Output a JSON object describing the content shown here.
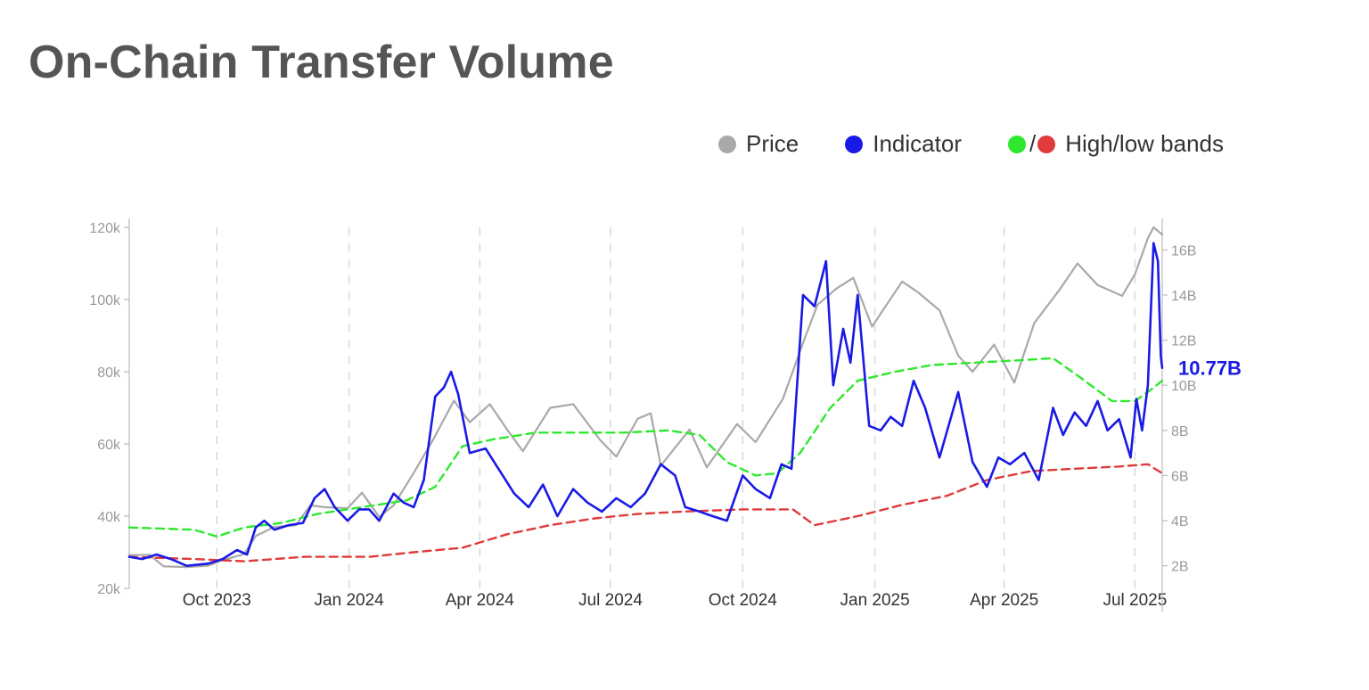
{
  "title": "On-Chain Transfer Volume",
  "legend": {
    "price_label": "Price",
    "indicator_label": "Indicator",
    "slash": "/",
    "bands_label": "High/low bands"
  },
  "colors": {
    "price": "#a9a9a9",
    "indicator": "#1a1ae6",
    "high_band": "#2ee82e",
    "low_band": "#e03a3a",
    "grid": "#d6d6d6",
    "axis": "#bbbbbb"
  },
  "chart_data": {
    "type": "line",
    "title": "On-Chain Transfer Volume",
    "x_range": [
      "2023-08-01",
      "2025-07-20"
    ],
    "x_ticks": [
      {
        "date": "2023-10-01",
        "label": "Oct 2023"
      },
      {
        "date": "2024-01-01",
        "label": "Jan 2024"
      },
      {
        "date": "2024-04-01",
        "label": "Apr 2024"
      },
      {
        "date": "2024-07-01",
        "label": "Jul 2024"
      },
      {
        "date": "2024-10-01",
        "label": "Oct 2024"
      },
      {
        "date": "2025-01-01",
        "label": "Jan 2025"
      },
      {
        "date": "2025-04-01",
        "label": "Apr 2025"
      },
      {
        "date": "2025-07-01",
        "label": "Jul 2025"
      }
    ],
    "grid": "vertical dashed",
    "legend_position": "top-right",
    "left_axis": {
      "min": 20000,
      "max": 120000,
      "ticks": [
        20000,
        40000,
        60000,
        80000,
        100000,
        120000
      ],
      "tick_labels": [
        "20k",
        "40k",
        "60k",
        "80k",
        "100k",
        "120k"
      ]
    },
    "right_axis": {
      "min": 1,
      "max": 17,
      "ticks": [
        2,
        4,
        6,
        8,
        10,
        12,
        14,
        16
      ],
      "tick_labels": [
        "2B",
        "4B",
        "6B",
        "8B",
        "10B",
        "12B",
        "14B",
        "16B"
      ]
    },
    "last_value_label": "10.77B",
    "series": [
      {
        "name": "Price",
        "axis": "left",
        "style": "solid",
        "points": [
          [
            "2023-08-01",
            29200
          ],
          [
            "2023-08-15",
            29300
          ],
          [
            "2023-08-25",
            26100
          ],
          [
            "2023-09-10",
            25900
          ],
          [
            "2023-09-25",
            26300
          ],
          [
            "2023-10-05",
            27800
          ],
          [
            "2023-10-20",
            29500
          ],
          [
            "2023-10-28",
            34500
          ],
          [
            "2023-11-10",
            37000
          ],
          [
            "2023-11-25",
            37500
          ],
          [
            "2023-12-05",
            43000
          ],
          [
            "2023-12-15",
            42500
          ],
          [
            "2023-12-31",
            42200
          ],
          [
            "2024-01-10",
            46500
          ],
          [
            "2024-01-22",
            39800
          ],
          [
            "2024-02-01",
            43000
          ],
          [
            "2024-02-15",
            52000
          ],
          [
            "2024-02-29",
            61500
          ],
          [
            "2024-03-14",
            72000
          ],
          [
            "2024-03-25",
            66000
          ],
          [
            "2024-04-08",
            71000
          ],
          [
            "2024-04-20",
            64000
          ],
          [
            "2024-05-01",
            58000
          ],
          [
            "2024-05-20",
            70000
          ],
          [
            "2024-06-05",
            71000
          ],
          [
            "2024-06-24",
            61000
          ],
          [
            "2024-07-05",
            56500
          ],
          [
            "2024-07-20",
            67000
          ],
          [
            "2024-07-29",
            68500
          ],
          [
            "2024-08-05",
            54000
          ],
          [
            "2024-08-25",
            64000
          ],
          [
            "2024-09-06",
            53500
          ],
          [
            "2024-09-27",
            65500
          ],
          [
            "2024-10-10",
            60500
          ],
          [
            "2024-10-29",
            72500
          ],
          [
            "2024-11-12",
            88000
          ],
          [
            "2024-11-22",
            98500
          ],
          [
            "2024-12-05",
            103000
          ],
          [
            "2024-12-17",
            106000
          ],
          [
            "2024-12-30",
            92500
          ],
          [
            "2025-01-20",
            105000
          ],
          [
            "2025-01-31",
            102000
          ],
          [
            "2025-02-15",
            97000
          ],
          [
            "2025-02-28",
            84500
          ],
          [
            "2025-03-10",
            80000
          ],
          [
            "2025-03-25",
            87500
          ],
          [
            "2025-04-08",
            77000
          ],
          [
            "2025-04-22",
            93500
          ],
          [
            "2025-05-10",
            103000
          ],
          [
            "2025-05-22",
            110000
          ],
          [
            "2025-06-05",
            104000
          ],
          [
            "2025-06-22",
            101000
          ],
          [
            "2025-07-01",
            107000
          ],
          [
            "2025-07-10",
            117000
          ],
          [
            "2025-07-14",
            120000
          ],
          [
            "2025-07-20",
            118000
          ]
        ]
      },
      {
        "name": "Indicator",
        "axis": "right",
        "style": "solid",
        "points": [
          [
            "2023-08-01",
            2.4
          ],
          [
            "2023-08-10",
            2.3
          ],
          [
            "2023-08-20",
            2.5
          ],
          [
            "2023-08-30",
            2.3
          ],
          [
            "2023-09-10",
            2.0
          ],
          [
            "2023-09-25",
            2.1
          ],
          [
            "2023-10-05",
            2.3
          ],
          [
            "2023-10-15",
            2.7
          ],
          [
            "2023-10-22",
            2.5
          ],
          [
            "2023-10-28",
            3.7
          ],
          [
            "2023-11-03",
            4.0
          ],
          [
            "2023-11-10",
            3.6
          ],
          [
            "2023-11-20",
            3.8
          ],
          [
            "2023-11-30",
            3.9
          ],
          [
            "2023-12-08",
            5.0
          ],
          [
            "2023-12-15",
            5.4
          ],
          [
            "2023-12-22",
            4.6
          ],
          [
            "2023-12-31",
            4.0
          ],
          [
            "2024-01-08",
            4.5
          ],
          [
            "2024-01-15",
            4.5
          ],
          [
            "2024-01-22",
            4.0
          ],
          [
            "2024-02-01",
            5.2
          ],
          [
            "2024-02-08",
            4.8
          ],
          [
            "2024-02-15",
            4.6
          ],
          [
            "2024-02-22",
            5.8
          ],
          [
            "2024-03-01",
            9.5
          ],
          [
            "2024-03-07",
            9.9
          ],
          [
            "2024-03-12",
            10.6
          ],
          [
            "2024-03-17",
            9.6
          ],
          [
            "2024-03-25",
            7.0
          ],
          [
            "2024-04-05",
            7.2
          ],
          [
            "2024-04-15",
            6.2
          ],
          [
            "2024-04-25",
            5.2
          ],
          [
            "2024-05-05",
            4.6
          ],
          [
            "2024-05-15",
            5.6
          ],
          [
            "2024-05-25",
            4.2
          ],
          [
            "2024-06-05",
            5.4
          ],
          [
            "2024-06-15",
            4.8
          ],
          [
            "2024-06-25",
            4.4
          ],
          [
            "2024-07-05",
            5.0
          ],
          [
            "2024-07-15",
            4.6
          ],
          [
            "2024-07-25",
            5.2
          ],
          [
            "2024-08-05",
            6.5
          ],
          [
            "2024-08-15",
            6.0
          ],
          [
            "2024-08-22",
            4.6
          ],
          [
            "2024-09-01",
            4.4
          ],
          [
            "2024-09-10",
            4.2
          ],
          [
            "2024-09-20",
            4.0
          ],
          [
            "2024-10-01",
            6.0
          ],
          [
            "2024-10-10",
            5.4
          ],
          [
            "2024-10-20",
            5.0
          ],
          [
            "2024-10-28",
            6.5
          ],
          [
            "2024-11-04",
            6.3
          ],
          [
            "2024-11-12",
            14.0
          ],
          [
            "2024-11-20",
            13.5
          ],
          [
            "2024-11-28",
            15.5
          ],
          [
            "2024-12-03",
            10.0
          ],
          [
            "2024-12-10",
            12.5
          ],
          [
            "2024-12-15",
            11.0
          ],
          [
            "2024-12-20",
            14.0
          ],
          [
            "2024-12-28",
            8.2
          ],
          [
            "2025-01-05",
            8.0
          ],
          [
            "2025-01-12",
            8.6
          ],
          [
            "2025-01-20",
            8.2
          ],
          [
            "2025-01-28",
            10.2
          ],
          [
            "2025-02-05",
            9.0
          ],
          [
            "2025-02-15",
            6.8
          ],
          [
            "2025-02-28",
            9.7
          ],
          [
            "2025-03-10",
            6.6
          ],
          [
            "2025-03-20",
            5.5
          ],
          [
            "2025-03-28",
            6.8
          ],
          [
            "2025-04-05",
            6.5
          ],
          [
            "2025-04-15",
            7.0
          ],
          [
            "2025-04-25",
            5.8
          ],
          [
            "2025-05-05",
            9.0
          ],
          [
            "2025-05-12",
            7.8
          ],
          [
            "2025-05-20",
            8.8
          ],
          [
            "2025-05-28",
            8.2
          ],
          [
            "2025-06-05",
            9.3
          ],
          [
            "2025-06-12",
            8.0
          ],
          [
            "2025-06-20",
            8.5
          ],
          [
            "2025-06-28",
            6.8
          ],
          [
            "2025-07-02",
            9.4
          ],
          [
            "2025-07-06",
            8.0
          ],
          [
            "2025-07-10",
            10.0
          ],
          [
            "2025-07-14",
            16.3
          ],
          [
            "2025-07-17",
            15.5
          ],
          [
            "2025-07-19",
            11.3
          ],
          [
            "2025-07-20",
            10.77
          ]
        ]
      },
      {
        "name": "High/low bands (high)",
        "axis": "right",
        "style": "dashed",
        "points": [
          [
            "2023-08-01",
            3.7
          ],
          [
            "2023-09-15",
            3.6
          ],
          [
            "2023-10-01",
            3.3
          ],
          [
            "2023-10-20",
            3.7
          ],
          [
            "2023-11-15",
            3.9
          ],
          [
            "2023-12-10",
            4.3
          ],
          [
            "2024-01-10",
            4.6
          ],
          [
            "2024-02-10",
            4.9
          ],
          [
            "2024-03-01",
            5.5
          ],
          [
            "2024-03-20",
            7.3
          ],
          [
            "2024-04-10",
            7.6
          ],
          [
            "2024-05-10",
            7.9
          ],
          [
            "2024-06-10",
            7.9
          ],
          [
            "2024-07-10",
            7.9
          ],
          [
            "2024-08-10",
            8.0
          ],
          [
            "2024-09-01",
            7.8
          ],
          [
            "2024-09-20",
            6.6
          ],
          [
            "2024-10-10",
            6.0
          ],
          [
            "2024-10-25",
            6.1
          ],
          [
            "2024-11-10",
            7.0
          ],
          [
            "2024-12-01",
            9.0
          ],
          [
            "2024-12-20",
            10.2
          ],
          [
            "2025-01-15",
            10.6
          ],
          [
            "2025-02-10",
            10.9
          ],
          [
            "2025-03-10",
            11.0
          ],
          [
            "2025-04-10",
            11.1
          ],
          [
            "2025-05-05",
            11.2
          ],
          [
            "2025-05-25",
            10.3
          ],
          [
            "2025-06-15",
            9.3
          ],
          [
            "2025-07-01",
            9.3
          ],
          [
            "2025-07-12",
            9.8
          ],
          [
            "2025-07-20",
            10.2
          ]
        ]
      },
      {
        "name": "High/low bands (low)",
        "axis": "right",
        "style": "dashed",
        "points": [
          [
            "2023-08-01",
            2.4
          ],
          [
            "2023-09-15",
            2.3
          ],
          [
            "2023-10-20",
            2.2
          ],
          [
            "2023-12-01",
            2.4
          ],
          [
            "2024-01-15",
            2.4
          ],
          [
            "2024-02-15",
            2.6
          ],
          [
            "2024-03-20",
            2.8
          ],
          [
            "2024-04-20",
            3.4
          ],
          [
            "2024-05-20",
            3.8
          ],
          [
            "2024-06-20",
            4.1
          ],
          [
            "2024-07-20",
            4.3
          ],
          [
            "2024-08-20",
            4.4
          ],
          [
            "2024-10-01",
            4.5
          ],
          [
            "2024-11-05",
            4.5
          ],
          [
            "2024-11-20",
            3.8
          ],
          [
            "2024-12-20",
            4.2
          ],
          [
            "2025-01-20",
            4.7
          ],
          [
            "2025-02-20",
            5.1
          ],
          [
            "2025-03-20",
            5.8
          ],
          [
            "2025-04-20",
            6.2
          ],
          [
            "2025-05-20",
            6.3
          ],
          [
            "2025-06-20",
            6.4
          ],
          [
            "2025-07-10",
            6.5
          ],
          [
            "2025-07-20",
            6.1
          ]
        ]
      }
    ]
  }
}
